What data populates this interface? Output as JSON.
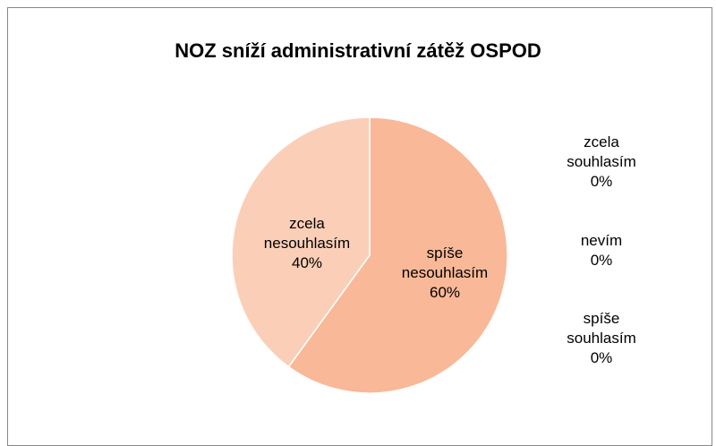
{
  "chart_data": {
    "type": "pie",
    "title": "NOZ sníží administrativní zátěž OSPOD",
    "categories": [
      "zcela souhlasím",
      "nevím",
      "spíše souhlasím",
      "spíše nesouhlasím",
      "zcela nesouhlasím"
    ],
    "values": [
      0,
      0,
      0,
      60,
      40
    ],
    "value_labels": [
      "0%",
      "0%",
      "0%",
      "60%",
      "40%"
    ],
    "colors": [
      "#f4a27a",
      "#f6ad89",
      "#f7b391",
      "#f9b897",
      "#fbcfb7"
    ]
  }
}
